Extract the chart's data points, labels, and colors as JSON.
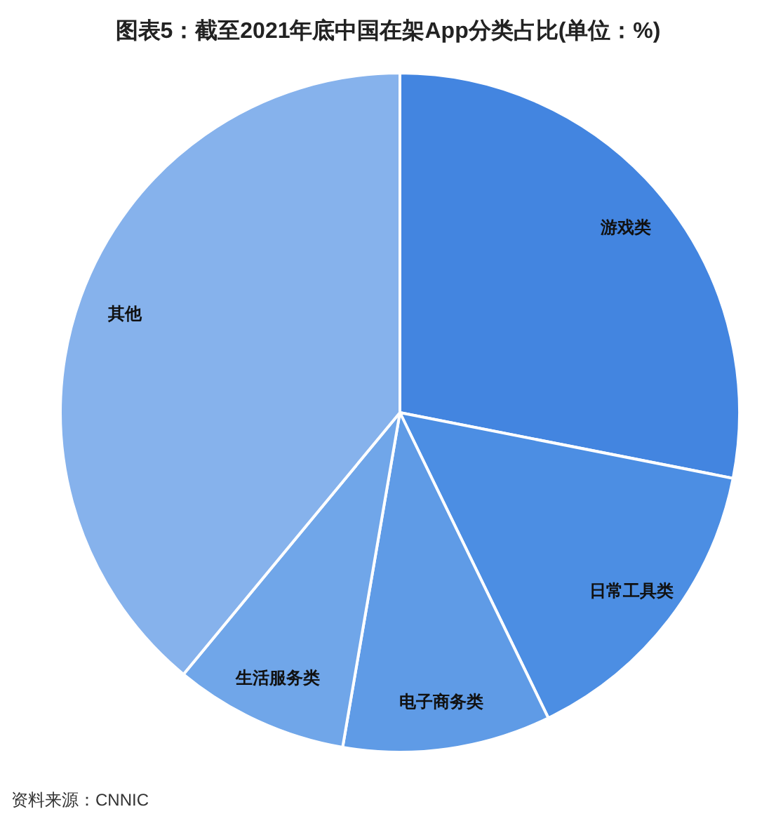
{
  "chart_data": {
    "type": "pie",
    "title": "图表5：截至2021年底中国在架App分类占比(单位：%)",
    "categories": [
      "游戏类",
      "日常工具类",
      "电子商务类",
      "生活服务类",
      "其他"
    ],
    "values": [
      28.1,
      14.7,
      9.9,
      8.3,
      39.0
    ],
    "colors": [
      "#4385e0",
      "#4c8ee3",
      "#5f9be6",
      "#70a6e9",
      "#86b2ec"
    ],
    "annotations": [
      "资料来源：CNNIC"
    ]
  }
}
